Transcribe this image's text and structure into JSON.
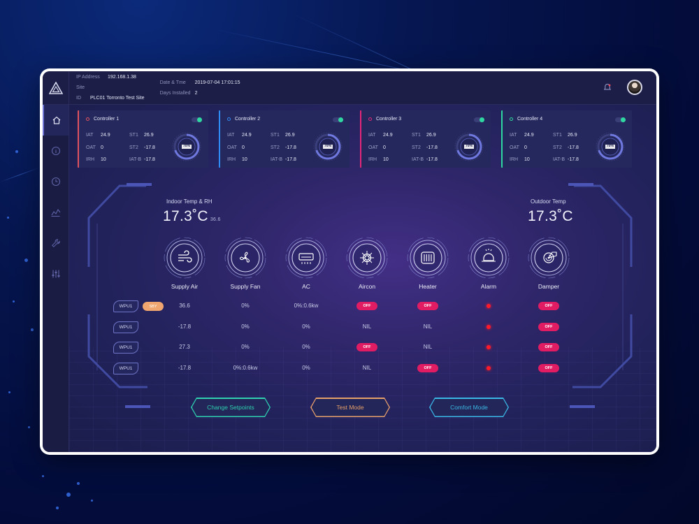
{
  "colors": {
    "controller_1": "#e0535e",
    "controller_2": "#2e8cf4",
    "controller_3": "#e5277a",
    "controller_4": "#2fd8a0",
    "off_badge": "#e21c63",
    "sby_badge": "#f0a66e",
    "alarm": "#ff1a2a",
    "btn_setpoints": "#2fd1b1",
    "btn_test": "#e8a06a",
    "btn_comfort": "#3bb8e6"
  },
  "header": {
    "ip_label": "IP Address",
    "ip_value": "192.168.1.38",
    "site_label": "Site ID",
    "site_value": "PLC01 Torronto Test Site",
    "date_label": "Date & Tme",
    "date_value": "2019-07-04   17:01:15",
    "days_label": "Days Installed",
    "days_value": "2"
  },
  "sidebar": {
    "items": [
      {
        "icon": "home-icon"
      },
      {
        "icon": "info-icon"
      },
      {
        "icon": "clock-icon"
      },
      {
        "icon": "chart-icon"
      },
      {
        "icon": "wrench-icon"
      },
      {
        "icon": "sliders-icon"
      }
    ]
  },
  "controllers": [
    {
      "name": "Controller 1",
      "IAT": "24.9",
      "OAT": "0",
      "IRH": "10",
      "ST1": "26.9",
      "ST2": "-17.8",
      "IATB": "-17.8",
      "gauge": "70%",
      "gauge_value": 0.7
    },
    {
      "name": "Controller 2",
      "IAT": "24.9",
      "OAT": "0",
      "IRH": "10",
      "ST1": "26.9",
      "ST2": "-17.8",
      "IATB": "-17.8",
      "gauge": "70%",
      "gauge_value": 0.7
    },
    {
      "name": "Controller 3",
      "IAT": "24.9",
      "OAT": "0",
      "IRH": "10",
      "ST1": "26.9",
      "ST2": "-17.8",
      "IATB": "-17.8",
      "gauge": "70%",
      "gauge_value": 0.7
    },
    {
      "name": "Controller 4",
      "IAT": "24.9",
      "OAT": "0",
      "IRH": "10",
      "ST1": "26.9",
      "ST2": "-17.8",
      "IATB": "-17.8",
      "gauge": "70%",
      "gauge_value": 0.7
    }
  ],
  "controller_keys": {
    "iat": "IAT",
    "oat": "OAT",
    "irh": "IRH",
    "st1": "ST1",
    "st2": "ST2",
    "iatb": "IAT-B"
  },
  "indoor": {
    "label": "Indoor Temp & RH",
    "temp": "17.3˚C",
    "rh": "36.6"
  },
  "outdoor": {
    "label": "Outdoor Temp",
    "temp": "17.3˚C"
  },
  "devices": [
    {
      "label": "Supply Air",
      "icon": "wind-icon"
    },
    {
      "label": "Supply Fan",
      "icon": "fan-icon"
    },
    {
      "label": "AC",
      "icon": "air-conditioner-icon"
    },
    {
      "label": "Aircon",
      "icon": "snowflake-icon"
    },
    {
      "label": "Heater",
      "icon": "radiator-icon"
    },
    {
      "label": "Alarm",
      "icon": "alarm-bell-icon"
    },
    {
      "label": "Damper",
      "icon": "damper-icon"
    }
  ],
  "rows": [
    {
      "unit": "WPU1",
      "badge": "SBY",
      "supply_air": "36.6",
      "supply_fan": "0%",
      "ac": "0%:0.6kw",
      "aircon": "OFF",
      "heater": "OFF",
      "damper": "OFF"
    },
    {
      "unit": "WPU1",
      "badge": "",
      "supply_air": "-17.8",
      "supply_fan": "0%",
      "ac": "0%",
      "aircon": "NIL",
      "heater": "NIL",
      "damper": "OFF"
    },
    {
      "unit": "WPU1",
      "badge": "",
      "supply_air": "27.3",
      "supply_fan": "0%",
      "ac": "0%",
      "aircon": "OFF",
      "heater": "NIL",
      "damper": "OFF"
    },
    {
      "unit": "WPU1",
      "badge": "",
      "supply_air": "-17.8",
      "supply_fan": "0%:0.6kw",
      "ac": "0%",
      "aircon": "NIL",
      "heater": "OFF",
      "damper": "OFF"
    }
  ],
  "actions": {
    "setpoints": "Change Setpoints",
    "test": "Test Mode",
    "comfort": "Comfort Mode"
  }
}
